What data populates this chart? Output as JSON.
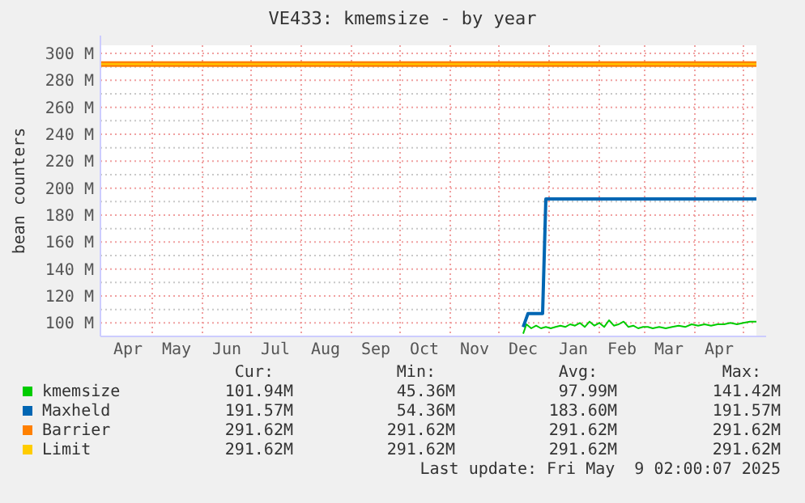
{
  "chart_data": {
    "type": "line",
    "title": "VE433: kmemsize - by year",
    "ylabel": "bean counters",
    "xlim": [
      "2024-03-30",
      "2025-05-09"
    ],
    "xticks": [
      {
        "value": "2024-04-16",
        "label": "Apr"
      },
      {
        "value": "2024-05-01",
        "label": null
      },
      {
        "value": "2024-05-16",
        "label": "May"
      },
      {
        "value": "2024-06-01",
        "label": null
      },
      {
        "value": "2024-06-16",
        "label": "Jun"
      },
      {
        "value": "2024-07-01",
        "label": null
      },
      {
        "value": "2024-07-16",
        "label": "Jul"
      },
      {
        "value": "2024-08-01",
        "label": null
      },
      {
        "value": "2024-08-16",
        "label": "Aug"
      },
      {
        "value": "2024-09-01",
        "label": null
      },
      {
        "value": "2024-09-16",
        "label": "Sep"
      },
      {
        "value": "2024-10-01",
        "label": null
      },
      {
        "value": "2024-10-16",
        "label": "Oct"
      },
      {
        "value": "2024-11-01",
        "label": null
      },
      {
        "value": "2024-11-16",
        "label": "Nov"
      },
      {
        "value": "2024-12-01",
        "label": null
      },
      {
        "value": "2024-12-16",
        "label": "Dec"
      },
      {
        "value": "2025-01-01",
        "label": null
      },
      {
        "value": "2025-01-16",
        "label": "Jan"
      },
      {
        "value": "2025-02-01",
        "label": null
      },
      {
        "value": "2025-02-15",
        "label": "Feb"
      },
      {
        "value": "2025-03-01",
        "label": null
      },
      {
        "value": "2025-03-16",
        "label": "Mar"
      },
      {
        "value": "2025-04-01",
        "label": null
      },
      {
        "value": "2025-04-16",
        "label": "Apr"
      },
      {
        "value": "2025-05-01",
        "label": null
      }
    ],
    "ylim": [
      90,
      306
    ],
    "yticks": [
      {
        "value": 100,
        "label": "100 M"
      },
      {
        "value": 110,
        "label": null
      },
      {
        "value": 120,
        "label": "120 M"
      },
      {
        "value": 130,
        "label": null
      },
      {
        "value": 140,
        "label": "140 M"
      },
      {
        "value": 150,
        "label": null
      },
      {
        "value": 160,
        "label": "160 M"
      },
      {
        "value": 170,
        "label": null
      },
      {
        "value": 180,
        "label": "180 M"
      },
      {
        "value": 190,
        "label": null
      },
      {
        "value": 200,
        "label": "200 M"
      },
      {
        "value": 210,
        "label": null
      },
      {
        "value": 220,
        "label": "220 M"
      },
      {
        "value": 230,
        "label": null
      },
      {
        "value": 240,
        "label": "240 M"
      },
      {
        "value": 250,
        "label": null
      },
      {
        "value": 260,
        "label": "260 M"
      },
      {
        "value": 270,
        "label": null
      },
      {
        "value": 280,
        "label": "280 M"
      },
      {
        "value": 290,
        "label": null
      },
      {
        "value": 300,
        "label": "300 M"
      }
    ],
    "grid": true,
    "legend": "bottom",
    "marker": "none",
    "line_style": "solid",
    "series": [
      {
        "name": "kmemsize",
        "color": "#00cc00",
        "x": [
          "2024-12-16",
          "2024-12-18",
          "2024-12-21",
          "2024-12-24",
          "2024-12-27",
          "2024-12-30",
          "2025-01-02",
          "2025-01-05",
          "2025-01-08",
          "2025-01-11",
          "2025-01-14",
          "2025-01-17",
          "2025-01-20",
          "2025-01-23",
          "2025-01-26",
          "2025-01-29",
          "2025-02-01",
          "2025-02-04",
          "2025-02-07",
          "2025-02-10",
          "2025-02-13",
          "2025-02-16",
          "2025-02-19",
          "2025-02-22",
          "2025-02-25",
          "2025-02-28",
          "2025-03-03",
          "2025-03-06",
          "2025-03-10",
          "2025-03-14",
          "2025-03-18",
          "2025-03-22",
          "2025-03-26",
          "2025-03-30",
          "2025-04-03",
          "2025-04-07",
          "2025-04-11",
          "2025-04-15",
          "2025-04-19",
          "2025-04-23",
          "2025-04-27",
          "2025-05-01",
          "2025-05-05",
          "2025-05-09"
        ],
        "values": [
          92,
          99,
          96,
          98,
          96,
          97,
          96,
          97,
          98,
          97,
          99,
          98,
          100,
          97,
          101,
          98,
          100,
          97,
          102,
          98,
          99,
          101,
          97,
          98,
          96,
          97,
          97,
          96,
          97,
          96,
          97,
          98,
          97,
          99,
          98,
          99,
          98,
          99,
          99,
          100,
          99,
          100,
          101,
          101
        ]
      },
      {
        "name": "Maxheld",
        "color": "#0066b3",
        "x": [
          "2024-12-16",
          "2024-12-19",
          "2024-12-28",
          "2024-12-30",
          "2025-05-09"
        ],
        "values": [
          97,
          107,
          107,
          192,
          192
        ]
      },
      {
        "name": "Barrier",
        "color": "#ff8000",
        "x": [
          "2024-03-30",
          "2025-05-09"
        ],
        "values": [
          292,
          292
        ]
      },
      {
        "name": "Limit",
        "color": "#ffcc00",
        "x": [
          "2024-03-30",
          "2025-05-09"
        ],
        "values": [
          292,
          292
        ]
      }
    ],
    "annotations": [
      "Cur:",
      "Min:",
      "Avg:",
      "Max:",
      "101.94M",
      "45.36M",
      "97.99M",
      "141.42M",
      "191.57M",
      "54.36M",
      "183.60M",
      "191.57M",
      "291.62M",
      "291.62M",
      "291.62M",
      "291.62M",
      "291.62M",
      "291.62M",
      "291.62M",
      "291.62M",
      "Last update: Fri May  9 02:00:07 2025"
    ]
  }
}
